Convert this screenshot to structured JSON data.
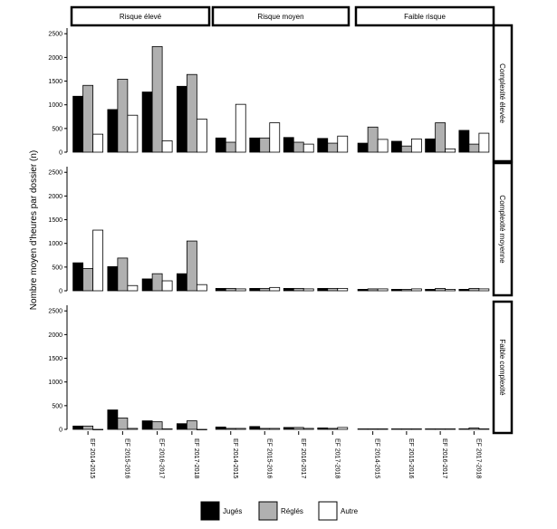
{
  "chart_data": {
    "type": "bar",
    "ylabel": "Nombre moyen d'heures par dossier (n)",
    "ylim": [
      0,
      2600
    ],
    "yticks": [
      0,
      500,
      1000,
      1500,
      2000,
      2500
    ],
    "categories": [
      "EF 2014-2015",
      "EF 2015-2016",
      "EF 2016-2017",
      "EF 2017-2018"
    ],
    "column_facets": [
      "Risque élevé",
      "Risque moyen",
      "Faible risque"
    ],
    "row_facets": [
      "Complexité élevée",
      "Complexité moyenne",
      "Faible complexité"
    ],
    "series_names": [
      "Jugés",
      "Réglés",
      "Autre"
    ],
    "colors": {
      "Jugés": "#000000",
      "Réglés": "#b0b0b0",
      "Autre": "#ffffff"
    },
    "panels": [
      {
        "row": "Complexité élevée",
        "col": "Risque élevé",
        "series": [
          {
            "name": "Jugés",
            "values": [
              1180,
              900,
              1270,
              1390
            ]
          },
          {
            "name": "Réglés",
            "values": [
              1410,
              1540,
              2230,
              1640
            ]
          },
          {
            "name": "Autre",
            "values": [
              380,
              780,
              240,
              700
            ]
          }
        ]
      },
      {
        "row": "Complexité élevée",
        "col": "Risque moyen",
        "series": [
          {
            "name": "Jugés",
            "values": [
              300,
              300,
              310,
              290
            ]
          },
          {
            "name": "Réglés",
            "values": [
              210,
              300,
              210,
              190
            ]
          },
          {
            "name": "Autre",
            "values": [
              1010,
              620,
              170,
              340
            ]
          }
        ]
      },
      {
        "row": "Complexité élevée",
        "col": "Faible risque",
        "series": [
          {
            "name": "Jugés",
            "values": [
              190,
              230,
              280,
              460
            ]
          },
          {
            "name": "Réglés",
            "values": [
              530,
              130,
              620,
              170
            ]
          },
          {
            "name": "Autre",
            "values": [
              270,
              280,
              70,
              400
            ]
          }
        ]
      },
      {
        "row": "Complexité moyenne",
        "col": "Risque élevé",
        "series": [
          {
            "name": "Jugés",
            "values": [
              590,
              510,
              250,
              360
            ]
          },
          {
            "name": "Réglés",
            "values": [
              470,
              690,
              360,
              1050
            ]
          },
          {
            "name": "Autre",
            "values": [
              1280,
              110,
              210,
              130
            ]
          }
        ]
      },
      {
        "row": "Complexité moyenne",
        "col": "Risque moyen",
        "series": [
          {
            "name": "Jugés",
            "values": [
              50,
              50,
              50,
              50
            ]
          },
          {
            "name": "Réglés",
            "values": [
              50,
              50,
              50,
              50
            ]
          },
          {
            "name": "Autre",
            "values": [
              40,
              70,
              40,
              50
            ]
          }
        ]
      },
      {
        "row": "Complexité moyenne",
        "col": "Faible risque",
        "series": [
          {
            "name": "Jugés",
            "values": [
              30,
              30,
              30,
              30
            ]
          },
          {
            "name": "Réglés",
            "values": [
              40,
              30,
              50,
              50
            ]
          },
          {
            "name": "Autre",
            "values": [
              40,
              40,
              30,
              40
            ]
          }
        ]
      },
      {
        "row": "Faible complexité",
        "col": "Risque élevé",
        "series": [
          {
            "name": "Jugés",
            "values": [
              70,
              410,
              180,
              120
            ]
          },
          {
            "name": "Réglés",
            "values": [
              70,
              240,
              160,
              180
            ]
          },
          {
            "name": "Autre",
            "values": [
              0,
              20,
              10,
              0
            ]
          }
        ]
      },
      {
        "row": "Faible complexité",
        "col": "Risque moyen",
        "series": [
          {
            "name": "Jugés",
            "values": [
              50,
              60,
              40,
              30
            ]
          },
          {
            "name": "Réglés",
            "values": [
              20,
              20,
              40,
              20
            ]
          },
          {
            "name": "Autre",
            "values": [
              20,
              20,
              20,
              40
            ]
          }
        ]
      },
      {
        "row": "Faible complexité",
        "col": "Faible risque",
        "series": [
          {
            "name": "Jugés",
            "values": [
              10,
              10,
              10,
              10
            ]
          },
          {
            "name": "Réglés",
            "values": [
              10,
              10,
              10,
              30
            ]
          },
          {
            "name": "Autre",
            "values": [
              10,
              10,
              10,
              10
            ]
          }
        ]
      }
    ]
  }
}
